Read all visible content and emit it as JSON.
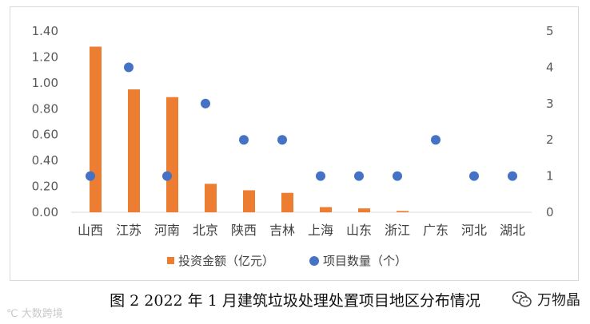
{
  "caption": "图 2  2022 年 1 月建筑垃圾处理处置项目地区分布情况",
  "watermark_left": "℃ 大数跨境",
  "watermark_right": "万物晶",
  "colors": {
    "bar": "#ED7D31",
    "dot": "#4472C4",
    "axis": "#d9d9d9"
  },
  "chart_data": {
    "type": "bar",
    "categories": [
      "山西",
      "江苏",
      "河南",
      "北京",
      "陕西",
      "吉林",
      "上海",
      "山东",
      "浙江",
      "广东",
      "河北",
      "湖北"
    ],
    "series": [
      {
        "name": "投资金额（亿元）",
        "type": "bar",
        "axis": "left",
        "values": [
          1.28,
          0.95,
          0.89,
          0.22,
          0.17,
          0.15,
          0.04,
          0.03,
          0.01,
          0,
          0,
          0
        ]
      },
      {
        "name": "项目数量（个）",
        "type": "scatter",
        "axis": "right",
        "values": [
          1,
          4,
          1,
          3,
          2,
          2,
          1,
          1,
          1,
          2,
          1,
          1
        ]
      }
    ],
    "ylim_left": [
      0,
      1.4
    ],
    "yticks_left": [
      "0.00",
      "0.20",
      "0.40",
      "0.60",
      "0.80",
      "1.00",
      "1.20",
      "1.40"
    ],
    "ylim_right": [
      0,
      5
    ],
    "yticks_right": [
      "0",
      "1",
      "2",
      "3",
      "4",
      "5"
    ],
    "grid": false,
    "legend_position": "bottom"
  }
}
